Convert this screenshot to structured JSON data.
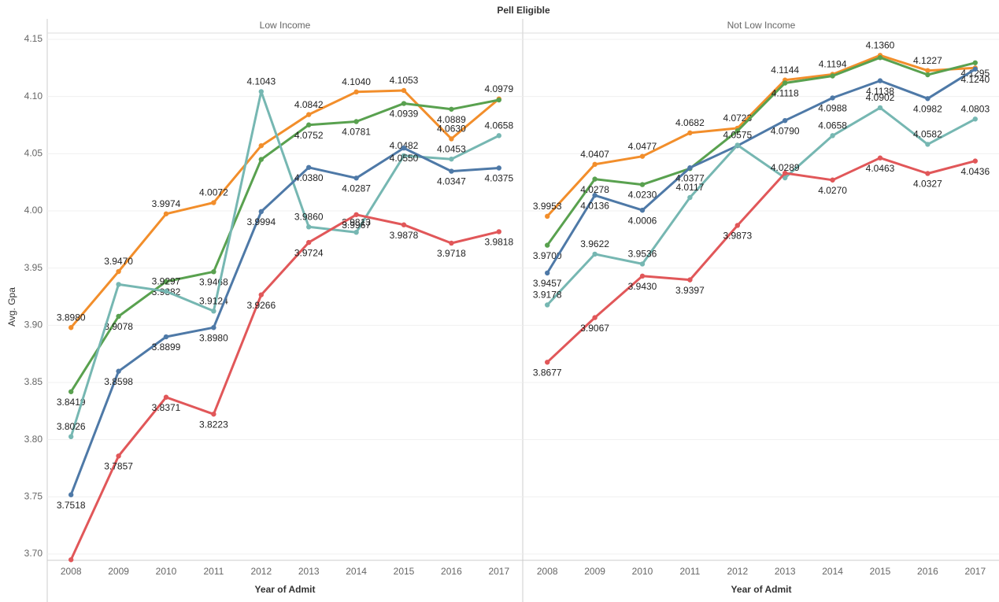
{
  "title": "Pell Eligible",
  "y_label": "Avg. Gpa",
  "chart_data": [
    {
      "type": "line",
      "title": "Low Income",
      "x_label": "Year of Admit",
      "categories": [
        2008,
        2009,
        2010,
        2011,
        2012,
        2013,
        2014,
        2015,
        2016,
        2017
      ],
      "ylim": [
        3.6945,
        4.1555
      ],
      "yticks": [
        {
          "value": 3.7,
          "label": "3.70"
        },
        3.75,
        {
          "value": 3.8,
          "label": "3.80"
        },
        3.85,
        {
          "value": 3.9,
          "label": "3.90"
        },
        3.95,
        {
          "value": 4.0,
          "label": "4.00"
        },
        4.05,
        {
          "value": 4.1,
          "label": "4.10"
        },
        4.15
      ],
      "grid": true,
      "series": [
        {
          "color": "#f28e2b",
          "values": [
            3.898,
            3.947,
            3.9974,
            4.0072,
            4.057,
            4.0842,
            4.104,
            4.1053,
            4.063,
            4.0979
          ],
          "value_labels": [
            "3.8980",
            "3.9470",
            "3.9974",
            "4.0072",
            null,
            "4.0842",
            "4.1040",
            "4.1053",
            "4.0630",
            "4.0979"
          ]
        },
        {
          "color": "#59a14f",
          "values": [
            3.8419,
            3.9078,
            3.9382,
            3.9468,
            4.045,
            4.0752,
            4.0781,
            4.0939,
            4.0889,
            4.097
          ],
          "value_labels": [
            "3.8419",
            "3.9078",
            "3.9382",
            "3.9468",
            null,
            "4.0752",
            "4.0781",
            "4.0939",
            "4.0889",
            null
          ]
        },
        {
          "color": "#76b7b2",
          "values": [
            3.8026,
            3.9357,
            3.9297,
            3.9124,
            4.1043,
            3.986,
            3.9813,
            4.0482,
            4.0453,
            4.0658
          ],
          "value_labels": [
            "3.8026",
            null,
            "3.9297",
            "3.9124",
            "4.1043",
            "3.9860",
            "3.9813",
            "4.0482",
            "4.0453",
            "4.0658"
          ]
        },
        {
          "color": "#4e79a7",
          "values": [
            3.7518,
            3.8598,
            3.8899,
            3.898,
            3.9994,
            4.038,
            4.0287,
            4.055,
            4.0347,
            4.0375
          ],
          "value_labels": [
            "3.7518",
            "3.8598",
            "3.8899",
            "3.8980",
            "3.9994",
            "4.0380",
            "4.0287",
            "4.0550",
            "4.0347",
            "4.0375"
          ]
        },
        {
          "color": "#e15759",
          "values": [
            3.695,
            3.7857,
            3.8371,
            3.8223,
            3.9266,
            3.9724,
            3.9967,
            3.9878,
            3.9718,
            3.9818
          ],
          "value_labels": [
            null,
            "3.7857",
            "3.8371",
            "3.8223",
            "3.9266",
            "3.9724",
            "3.9967",
            "3.9878",
            "3.9718",
            "3.9818"
          ]
        }
      ]
    },
    {
      "type": "line",
      "title": "Not Low Income",
      "x_label": "Year of Admit",
      "categories": [
        2008,
        2009,
        2010,
        2011,
        2012,
        2013,
        2014,
        2015,
        2016,
        2017
      ],
      "ylim": [
        3.6945,
        4.1555
      ],
      "grid": true,
      "series": [
        {
          "color": "#f28e2b",
          "values": [
            3.9953,
            4.0407,
            4.0477,
            4.0682,
            4.0723,
            4.1144,
            4.1194,
            4.136,
            4.1227,
            4.125
          ],
          "value_labels": [
            "3.9953",
            "4.0407",
            "4.0477",
            "4.0682",
            "4.0723",
            "4.1144",
            "4.1194",
            "4.1360",
            "4.1227",
            null
          ]
        },
        {
          "color": "#59a14f",
          "values": [
            3.97,
            4.0278,
            4.023,
            4.037,
            4.07,
            4.1118,
            4.118,
            4.134,
            4.119,
            4.1295
          ],
          "value_labels": [
            "3.9700",
            "4.0278",
            "4.0230",
            null,
            null,
            "4.1118",
            null,
            null,
            null,
            "4.1295"
          ]
        },
        {
          "color": "#4e79a7",
          "values": [
            3.9457,
            4.0136,
            4.0006,
            4.0377,
            4.057,
            4.079,
            4.0988,
            4.1138,
            4.0982,
            4.124
          ],
          "value_labels": [
            "3.9457",
            "4.0136",
            "4.0006",
            "4.0377",
            null,
            "4.0790",
            "4.0988",
            "4.1138",
            "4.0982",
            "4.1240"
          ]
        },
        {
          "color": "#76b7b2",
          "values": [
            3.9178,
            3.9622,
            3.9536,
            4.0117,
            4.0575,
            4.0289,
            4.0658,
            4.0902,
            4.0582,
            4.0803
          ],
          "value_labels": [
            "3.9178",
            "3.9622",
            "3.9536",
            "4.0117",
            "4.0575",
            "4.0289",
            "4.0658",
            "4.0902",
            "4.0582",
            "4.0803"
          ]
        },
        {
          "color": "#e15759",
          "values": [
            3.8677,
            3.9067,
            3.943,
            3.9397,
            3.9873,
            4.033,
            4.027,
            4.0463,
            4.0327,
            4.0436
          ],
          "value_labels": [
            "3.8677",
            "3.9067",
            "3.9430",
            "3.9397",
            "3.9873",
            null,
            "4.0270",
            "4.0463",
            "4.0327",
            "4.0436"
          ]
        }
      ]
    }
  ]
}
